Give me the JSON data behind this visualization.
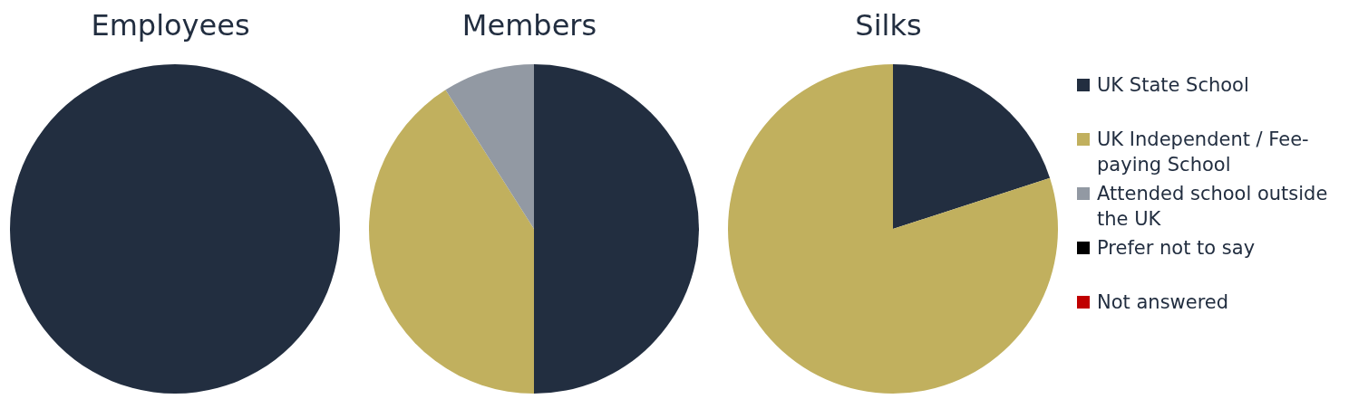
{
  "chart_data": [
    {
      "type": "pie",
      "title": "Employees",
      "categories": [
        null,
        null,
        null,
        null,
        null
      ],
      "values": [
        100,
        0,
        0,
        0,
        0
      ],
      "colors": [
        "#222e40",
        "#c1b05e",
        "#9299a3",
        "#000000",
        "#c00000"
      ]
    },
    {
      "type": "pie",
      "title": "Members",
      "categories": [
        null,
        null,
        null,
        null,
        null
      ],
      "values": [
        50,
        41,
        9,
        0,
        0
      ],
      "colors": [
        "#222e40",
        "#c1b05e",
        "#9299a3",
        "#000000",
        "#c00000"
      ]
    },
    {
      "type": "pie",
      "title": "Silks",
      "categories": [
        "UK State School",
        "UK Independent / Fee-paying School",
        "Attended school outside the UK",
        "Prefer not to say",
        "Not answered"
      ],
      "values": [
        20,
        80,
        0,
        0,
        0
      ],
      "colors": [
        "#222e40",
        "#c1b05e",
        "#9299a3",
        "#000000",
        "#c00000"
      ],
      "legend": "right"
    }
  ]
}
